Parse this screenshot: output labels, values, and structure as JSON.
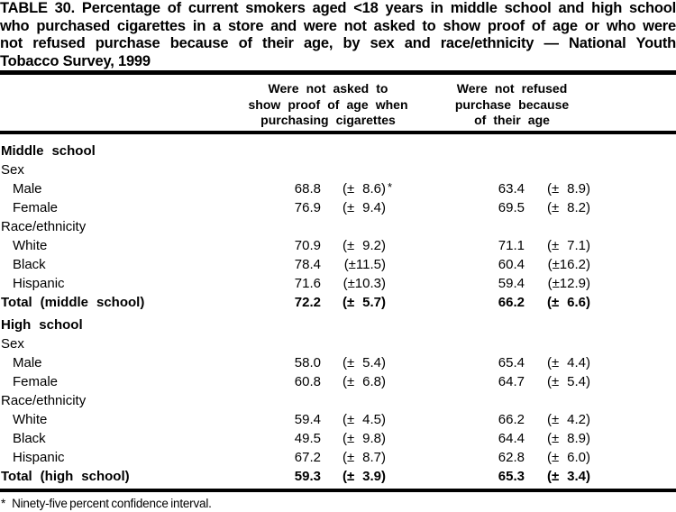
{
  "title_lines": [
    "TABLE 30. Percentage of current smokers aged <18 years in middle school and high school",
    "who purchased cigarettes in a store and were not asked to show proof of age or who were",
    "not refused purchase because of their age, by sex and race/ethnicity — National Youth",
    "Tobacco Survey, 1999"
  ],
  "header": {
    "col1_lines": [
      "Were not asked to",
      "show proof of age when",
      "purchasing cigarettes"
    ],
    "col2_lines": [
      "Were not refused",
      "purchase because",
      "of their age"
    ]
  },
  "rows": [
    {
      "label": "Middle school",
      "bold": true
    },
    {
      "label": "Sex"
    },
    {
      "label": "Male",
      "indent": 1,
      "v1": "68.8",
      "ci1": "(± 8.6)",
      "star1": "*",
      "v2": "63.4",
      "ci2": "(± 8.9)"
    },
    {
      "label": "Female",
      "indent": 1,
      "v1": "76.9",
      "ci1": "(± 9.4)",
      "v2": "69.5",
      "ci2": "(± 8.2)"
    },
    {
      "label": "Race/ethnicity"
    },
    {
      "label": "White",
      "indent": 1,
      "v1": "70.9",
      "ci1": "(± 9.2)",
      "v2": "71.1",
      "ci2": "(± 7.1)"
    },
    {
      "label": "Black",
      "indent": 1,
      "v1": "78.4",
      "ci1": "(±11.5)",
      "v2": "60.4",
      "ci2": "(±16.2)"
    },
    {
      "label": "Hispanic",
      "indent": 1,
      "v1": "71.6",
      "ci1": "(±10.3)",
      "v2": "59.4",
      "ci2": "(±12.9)"
    },
    {
      "label": "Total (middle school)",
      "bold": true,
      "v1": "72.2",
      "ci1": "(± 5.7)",
      "v2": "66.2",
      "ci2": "(± 6.6)"
    },
    {
      "label": "High school",
      "bold": true,
      "gap": true
    },
    {
      "label": "Sex"
    },
    {
      "label": "Male",
      "indent": 1,
      "v1": "58.0",
      "ci1": "(± 5.4)",
      "v2": "65.4",
      "ci2": "(± 4.4)"
    },
    {
      "label": "Female",
      "indent": 1,
      "v1": "60.8",
      "ci1": "(± 6.8)",
      "v2": "64.7",
      "ci2": "(± 5.4)"
    },
    {
      "label": "Race/ethnicity"
    },
    {
      "label": "White",
      "indent": 1,
      "v1": "59.4",
      "ci1": "(± 4.5)",
      "v2": "66.2",
      "ci2": "(± 4.2)"
    },
    {
      "label": "Black",
      "indent": 1,
      "v1": "49.5",
      "ci1": "(± 9.8)",
      "v2": "64.4",
      "ci2": "(± 8.9)"
    },
    {
      "label": "Hispanic",
      "indent": 1,
      "v1": "67.2",
      "ci1": "(± 8.7)",
      "v2": "62.8",
      "ci2": "(± 6.0)"
    },
    {
      "label": "Total (high school)",
      "bold": true,
      "v1": "59.3",
      "ci1": "(± 3.9)",
      "v2": "65.3",
      "ci2": "(± 3.4)"
    }
  ],
  "footnote": {
    "marker": "*",
    "text": "Ninety-five percent confidence interval."
  },
  "colors": {
    "text": "#000000",
    "background": "#ffffff",
    "rule": "#000000"
  }
}
